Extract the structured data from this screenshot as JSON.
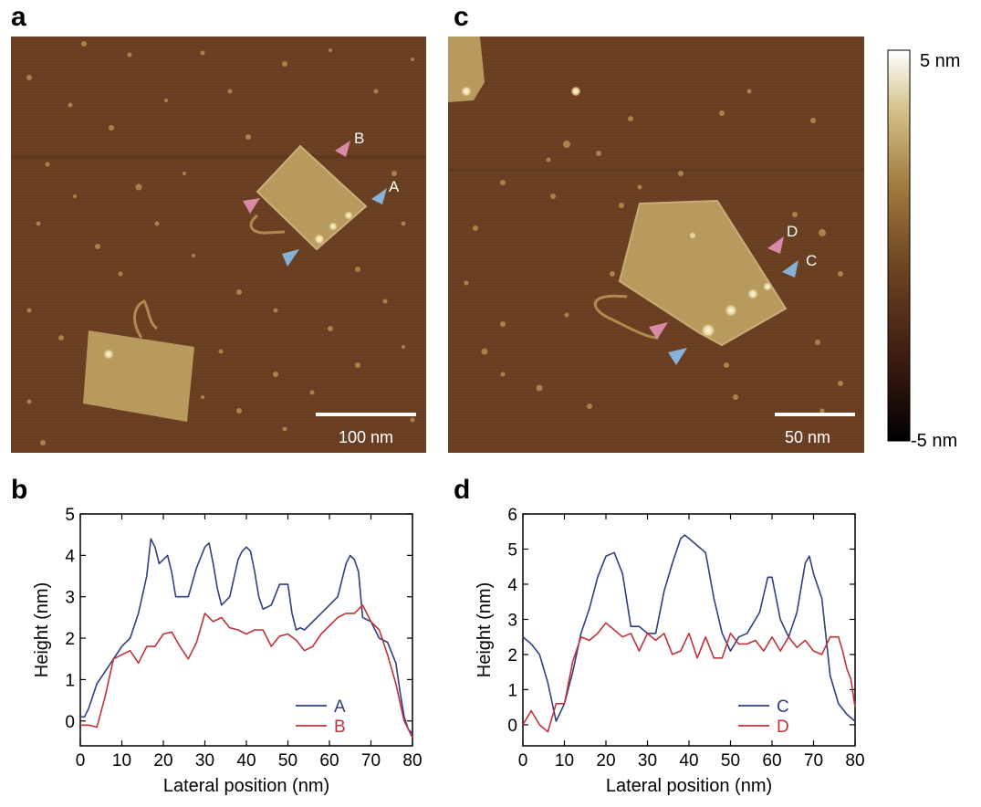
{
  "panels": {
    "a": {
      "label": "a",
      "scalebar": "100 nm",
      "markers": [
        {
          "name": "B",
          "color": "pink",
          "text": "B"
        },
        {
          "name": "A",
          "color": "blue",
          "text": "A"
        },
        {
          "name": "pink-left",
          "color": "pink",
          "text": ""
        },
        {
          "name": "blue-bottom",
          "color": "blue",
          "text": ""
        }
      ]
    },
    "c": {
      "label": "c",
      "scalebar": "50 nm",
      "markers": [
        {
          "name": "D",
          "color": "pink",
          "text": "D"
        },
        {
          "name": "C",
          "color": "blue",
          "text": "C"
        },
        {
          "name": "pink-bottom",
          "color": "pink",
          "text": ""
        },
        {
          "name": "blue-bottom",
          "color": "blue",
          "text": ""
        }
      ]
    },
    "b": {
      "label": "b"
    },
    "d": {
      "label": "d"
    }
  },
  "colorbar": {
    "max_label": "5 nm",
    "min_label": "-5 nm",
    "colors": [
      "#000000",
      "#3b1a10",
      "#6e4522",
      "#a07a3e",
      "#d6c28c",
      "#ffffff"
    ]
  },
  "colors": {
    "pink": "#d98aa6",
    "blue": "#86b2d8",
    "series_blue": "#2f3f82",
    "series_red": "#c1323a",
    "afm_bg": "#6b4023"
  },
  "chart_data": [
    {
      "type": "line",
      "panel": "b",
      "title": "",
      "xlabel": "Lateral position (nm)",
      "ylabel": "Height (nm)",
      "xlim": [
        0,
        80
      ],
      "ylim": [
        -0.6,
        5
      ],
      "xticks": [
        0,
        10,
        20,
        30,
        40,
        50,
        60,
        70,
        80
      ],
      "yticks": [
        0,
        1,
        2,
        3,
        4,
        5
      ],
      "legend": "bottom-right",
      "series": [
        {
          "name": "A",
          "color": "#2f3f82",
          "x": [
            0,
            1,
            2,
            4,
            6,
            8,
            10,
            12,
            14,
            16,
            17,
            18,
            19,
            20,
            21,
            22,
            23,
            24,
            26,
            28,
            30,
            31,
            32,
            33,
            34,
            35,
            36,
            38,
            39,
            40,
            41,
            42,
            43,
            44,
            46,
            48,
            50,
            51,
            52,
            53,
            54,
            56,
            58,
            60,
            62,
            64,
            65,
            66,
            67,
            68,
            69,
            70,
            72,
            74,
            76,
            77,
            78,
            79,
            80
          ],
          "y": [
            0.1,
            0.1,
            0.3,
            0.9,
            1.2,
            1.5,
            1.8,
            2.0,
            2.6,
            3.5,
            4.4,
            4.2,
            3.8,
            3.9,
            4.0,
            3.6,
            3.0,
            3.0,
            3.0,
            3.7,
            4.2,
            4.3,
            3.8,
            3.2,
            2.8,
            2.9,
            3.0,
            3.9,
            4.1,
            4.2,
            4.1,
            3.6,
            3.0,
            2.7,
            2.8,
            3.3,
            3.3,
            2.6,
            2.2,
            2.25,
            2.2,
            2.4,
            2.6,
            2.8,
            3.0,
            3.8,
            4.0,
            3.9,
            3.6,
            2.5,
            2.45,
            2.4,
            2.0,
            1.9,
            1.4,
            0.7,
            0.1,
            -0.2,
            -0.3
          ]
        },
        {
          "name": "B",
          "color": "#c1323a",
          "x": [
            0,
            2,
            4,
            6,
            8,
            10,
            12,
            14,
            16,
            18,
            20,
            22,
            24,
            26,
            28,
            30,
            32,
            34,
            36,
            38,
            40,
            42,
            44,
            46,
            48,
            50,
            52,
            54,
            56,
            58,
            60,
            62,
            64,
            66,
            68,
            70,
            72,
            74,
            76,
            78,
            80
          ],
          "y": [
            -0.1,
            -0.1,
            -0.15,
            0.6,
            1.5,
            1.6,
            1.7,
            1.4,
            1.8,
            1.8,
            2.1,
            2.15,
            1.8,
            1.5,
            1.9,
            2.6,
            2.4,
            2.5,
            2.25,
            2.2,
            2.1,
            2.2,
            2.2,
            1.8,
            2.05,
            2.1,
            1.95,
            1.7,
            1.8,
            2.1,
            2.3,
            2.5,
            2.6,
            2.6,
            2.8,
            2.4,
            2.2,
            1.6,
            0.9,
            0.0,
            -0.4
          ]
        }
      ]
    },
    {
      "type": "line",
      "panel": "d",
      "title": "",
      "xlabel": "Lateral position (nm)",
      "ylabel": "Height (nm)",
      "xlim": [
        0,
        80
      ],
      "ylim": [
        -0.6,
        6
      ],
      "xticks": [
        0,
        10,
        20,
        30,
        40,
        50,
        60,
        70,
        80
      ],
      "yticks": [
        0,
        1,
        2,
        3,
        4,
        5,
        6
      ],
      "legend": "bottom-right",
      "series": [
        {
          "name": "C",
          "color": "#2f3f82",
          "x": [
            0,
            2,
            4,
            6,
            8,
            10,
            12,
            14,
            16,
            18,
            20,
            22,
            24,
            26,
            28,
            30,
            32,
            34,
            36,
            38,
            39,
            40,
            42,
            44,
            46,
            48,
            50,
            52,
            54,
            56,
            57,
            58,
            59,
            60,
            62,
            64,
            66,
            68,
            69,
            70,
            72,
            74,
            76,
            78,
            80
          ],
          "y": [
            2.5,
            2.3,
            2.0,
            1.2,
            0.1,
            0.6,
            1.5,
            2.6,
            3.3,
            4.2,
            4.8,
            4.9,
            4.3,
            2.8,
            2.8,
            2.6,
            2.6,
            3.8,
            4.6,
            5.3,
            5.4,
            5.3,
            5.1,
            4.9,
            3.6,
            2.6,
            2.1,
            2.5,
            2.6,
            3.0,
            3.2,
            3.7,
            4.2,
            4.2,
            3.0,
            2.5,
            3.2,
            4.6,
            4.8,
            4.3,
            3.6,
            1.4,
            0.6,
            0.3,
            0.1
          ]
        },
        {
          "name": "D",
          "color": "#c1323a",
          "x": [
            0,
            2,
            4,
            6,
            8,
            10,
            12,
            14,
            16,
            18,
            20,
            22,
            24,
            26,
            28,
            30,
            32,
            34,
            36,
            38,
            40,
            42,
            44,
            46,
            48,
            50,
            52,
            54,
            56,
            58,
            60,
            62,
            64,
            66,
            68,
            70,
            72,
            74,
            76,
            77,
            78,
            79,
            80
          ],
          "y": [
            0.0,
            0.4,
            0.0,
            -0.2,
            0.6,
            0.6,
            1.8,
            2.5,
            2.4,
            2.6,
            2.9,
            2.7,
            2.5,
            2.6,
            2.1,
            2.6,
            2.4,
            2.6,
            2.0,
            2.1,
            2.6,
            1.9,
            2.5,
            1.9,
            1.9,
            2.6,
            2.3,
            2.3,
            2.4,
            2.1,
            2.5,
            2.1,
            2.5,
            2.2,
            2.4,
            2.1,
            2.0,
            2.5,
            2.5,
            2.1,
            1.6,
            1.3,
            0.5
          ]
        }
      ]
    }
  ]
}
